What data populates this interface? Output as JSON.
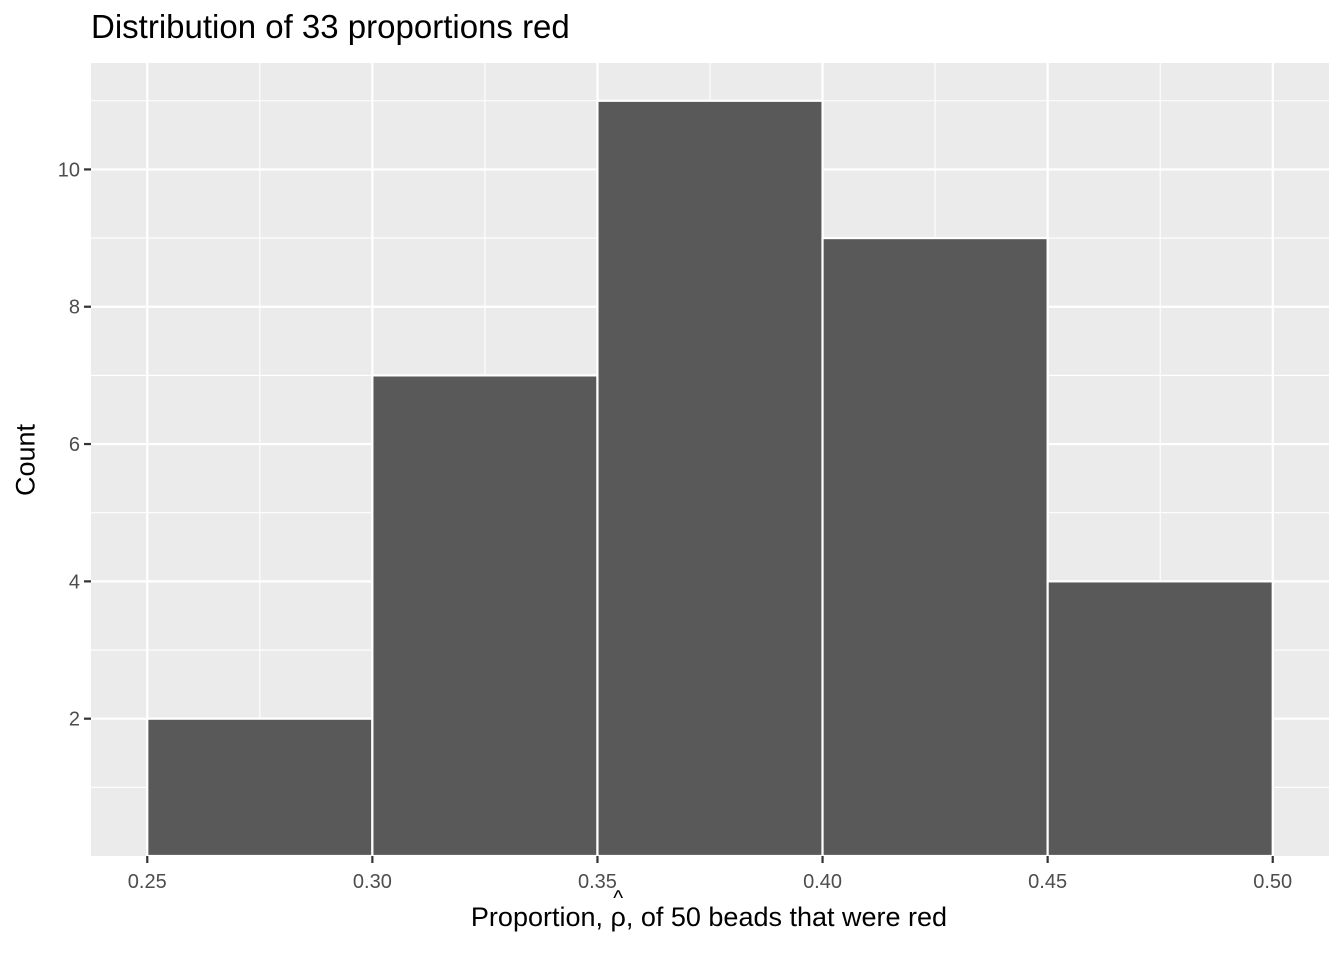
{
  "chart_data": {
    "type": "bar",
    "title": "Distribution of 33 proportions red",
    "xlabel_parts": {
      "before": "Proportion, ",
      "symbol": "ρ",
      "hat": "^",
      "after": ", of 50 beads that were red"
    },
    "ylabel": "Count",
    "bins": [
      {
        "x0": 0.25,
        "x1": 0.3,
        "count": 2
      },
      {
        "x0": 0.3,
        "x1": 0.35,
        "count": 7
      },
      {
        "x0": 0.35,
        "x1": 0.4,
        "count": 11
      },
      {
        "x0": 0.4,
        "x1": 0.45,
        "count": 9
      },
      {
        "x0": 0.45,
        "x1": 0.5,
        "count": 4
      }
    ],
    "x_ticks": [
      "0.25",
      "0.30",
      "0.35",
      "0.40",
      "0.45",
      "0.50"
    ],
    "y_ticks": [
      "2",
      "4",
      "6",
      "8",
      "10"
    ],
    "xlim": [
      0.2375,
      0.5125
    ],
    "ylim": [
      0,
      11.55
    ],
    "grid": true,
    "colors": {
      "panel_background": "#ebebeb",
      "grid_major": "#ffffff",
      "bar_fill": "#595959",
      "bar_outline": "#ffffff",
      "tick_text": "#4d4d4d",
      "tick_mark": "#333333"
    }
  }
}
